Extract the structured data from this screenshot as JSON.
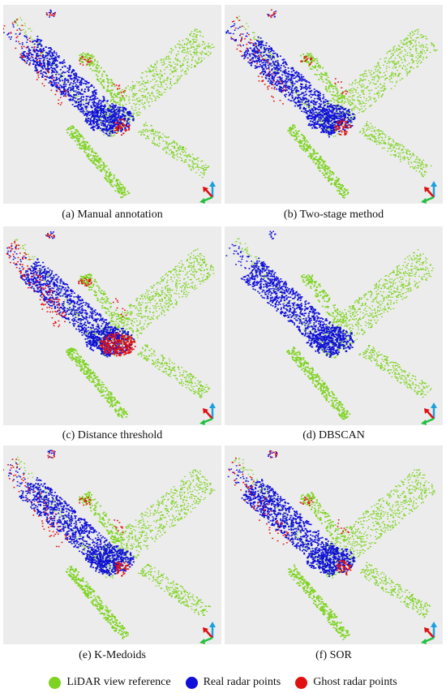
{
  "figure": {
    "colors": {
      "lidar": "#7ed321",
      "real": "#1010d8",
      "ghost": "#e01010",
      "background": "#ececec"
    },
    "panels": [
      {
        "id": "a",
        "caption": "(a) Manual annotation",
        "ghost_level": "moderate"
      },
      {
        "id": "b",
        "caption": "(b) Two-stage method",
        "ghost_level": "moderate"
      },
      {
        "id": "c",
        "caption": "(c) Distance threshold",
        "ghost_level": "high"
      },
      {
        "id": "d",
        "caption": "(d) DBSCAN",
        "ghost_level": "none"
      },
      {
        "id": "e",
        "caption": "(e) K-Medoids",
        "ghost_level": "moderate"
      },
      {
        "id": "f",
        "caption": "(f) SOR",
        "ghost_level": "moderate"
      }
    ],
    "legend": [
      {
        "label": "LiDAR view reference",
        "color": "#7ed321"
      },
      {
        "label": "Real radar points",
        "color": "#1010d8"
      },
      {
        "label": "Ghost radar points",
        "color": "#e01010"
      }
    ]
  }
}
